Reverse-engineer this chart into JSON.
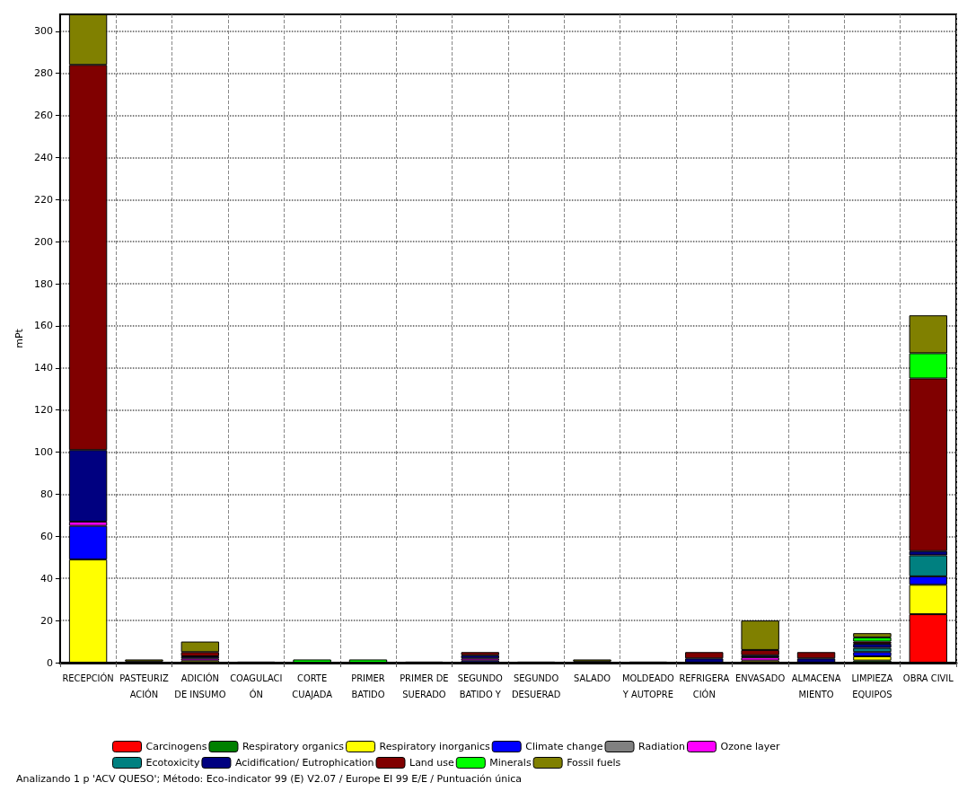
{
  "chart_data": {
    "type": "bar",
    "stacked": true,
    "ylabel": "mPt",
    "categories": [
      "RECEPCIÓN",
      "PASTEURIZ\nACIÓN",
      "ADICIÓN\nDE INSUMO",
      "COAGULACI\nÓN",
      "CORTE\nCUAJADA",
      "PRIMER\nBATIDO",
      "PRIMER DE\nSUERADO",
      "SEGUNDO\nBATIDO Y",
      "SEGUNDO\nDESUERAD",
      "SALADO",
      "MOLDEADO\nY AUTOPRE",
      "REFRIGERA\nCIÓN",
      "ENVASADO",
      "ALMACENA\nMIENTO",
      "LIMPIEZA\nEQUIPOS",
      "OBRA CIVIL"
    ],
    "series": [
      {
        "name": "Carcinogens",
        "color": "#ff0000",
        "values": [
          0,
          0,
          0,
          0,
          0,
          0,
          0,
          0,
          0,
          0,
          0,
          0,
          0,
          0,
          0,
          23
        ]
      },
      {
        "name": "Respiratory organics",
        "color": "#008000",
        "values": [
          0,
          0,
          0,
          0,
          0,
          0,
          0,
          0,
          0,
          0,
          0,
          0,
          0,
          0,
          1,
          0
        ]
      },
      {
        "name": "Respiratory inorganics",
        "color": "#ffff00",
        "values": [
          49,
          0,
          1,
          0,
          0,
          0,
          0,
          0,
          0,
          0,
          0,
          0,
          1,
          0,
          2,
          14
        ]
      },
      {
        "name": "Climate change",
        "color": "#0000ff",
        "values": [
          16,
          0,
          0,
          0,
          0,
          0,
          0,
          1,
          0,
          0,
          0,
          0,
          0,
          0,
          2,
          4
        ]
      },
      {
        "name": "Radiation",
        "color": "#808080",
        "values": [
          0,
          0,
          0,
          0,
          0,
          0,
          0,
          0,
          0,
          0,
          0,
          0,
          0,
          0,
          0,
          0
        ]
      },
      {
        "name": "Ozone layer",
        "color": "#ff00ff",
        "values": [
          2,
          0,
          1,
          0,
          0,
          0,
          0,
          1,
          0,
          0,
          0,
          0,
          1.5,
          0,
          0,
          0
        ]
      },
      {
        "name": "Ecotoxicity",
        "color": "#008080",
        "values": [
          0,
          0,
          0,
          0,
          0,
          0,
          0,
          0,
          0,
          0,
          0,
          0,
          0,
          0,
          2,
          10
        ]
      },
      {
        "name": "Acidification/ Eutrophication",
        "color": "#000080",
        "values": [
          34,
          0,
          1,
          0,
          0,
          0,
          0,
          1.5,
          0,
          0,
          0,
          2,
          1,
          2,
          2,
          2
        ]
      },
      {
        "name": "Land use",
        "color": "#800000",
        "values": [
          183,
          0.5,
          2,
          0,
          0,
          0,
          0,
          1.5,
          0,
          0.5,
          0,
          3,
          2.5,
          3,
          1,
          82
        ]
      },
      {
        "name": "Minerals",
        "color": "#00ff00",
        "values": [
          0,
          0,
          0,
          0,
          1.5,
          1.5,
          0,
          0,
          0,
          0,
          0,
          0,
          0,
          0,
          2,
          12
        ]
      },
      {
        "name": "Fossil fuels",
        "color": "#808000",
        "values": [
          24,
          1,
          5,
          0.5,
          0,
          0,
          0.5,
          0,
          0.5,
          1,
          0.5,
          0,
          14,
          0,
          2,
          18
        ]
      }
    ],
    "ylim": [
      0,
      308
    ],
    "yticks": [
      0,
      20,
      40,
      60,
      80,
      100,
      120,
      140,
      160,
      180,
      200,
      220,
      240,
      260,
      280,
      300
    ],
    "grid": true,
    "legend": "bottom",
    "annotations": [
      "Analizando 1 p 'ACV QUESO'; Método: Eco-indicator 99 (E) V2.07 / Europe EI 99 E/E / Puntuación única"
    ]
  }
}
